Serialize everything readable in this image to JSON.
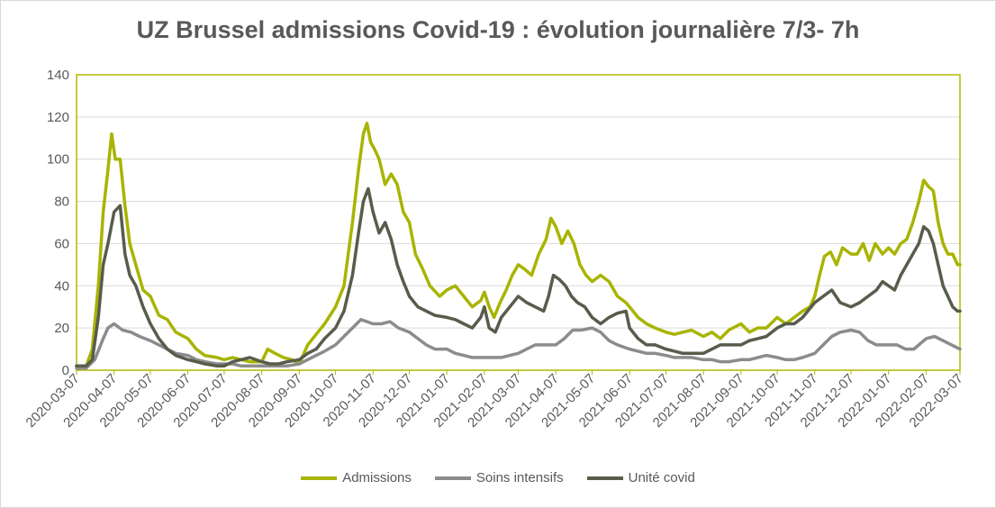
{
  "chart_data": {
    "type": "line",
    "title": "UZ Brussel admissions Covid-19 : évolution journalière 7/3- 7h",
    "xlabel": "",
    "ylabel": "",
    "ylim": [
      0,
      140
    ],
    "yticks": [
      0,
      20,
      40,
      60,
      80,
      100,
      120,
      140
    ],
    "x_tick_labels": [
      "2020-03-07",
      "2020-04-07",
      "2020-05-07",
      "2020-06-07",
      "2020-07-07",
      "2020-08-07",
      "2020-09-07",
      "2020-10-07",
      "2020-11-07",
      "2020-12-07",
      "2021-01-07",
      "2021-02-07",
      "2021-03-07",
      "2021-04-07",
      "2021-05-07",
      "2021-06-07",
      "2021-07-07",
      "2021-08-07",
      "2021-09-07",
      "2021-10-07",
      "2021-11-07",
      "2021-12-07",
      "2022-01-07",
      "2022-02-07",
      "2022-03-07"
    ],
    "grid": true,
    "legend_position": "bottom",
    "series": [
      {
        "name": "Admissions",
        "color": "#a8b400",
        "x": [
          "2020-03-07",
          "2020-03-15",
          "2020-03-20",
          "2020-03-25",
          "2020-03-29",
          "2020-04-02",
          "2020-04-05",
          "2020-04-08",
          "2020-04-12",
          "2020-04-16",
          "2020-04-20",
          "2020-04-25",
          "2020-05-01",
          "2020-05-07",
          "2020-05-14",
          "2020-05-21",
          "2020-05-28",
          "2020-06-07",
          "2020-06-14",
          "2020-06-21",
          "2020-07-01",
          "2020-07-07",
          "2020-07-14",
          "2020-07-21",
          "2020-07-28",
          "2020-08-07",
          "2020-08-12",
          "2020-08-18",
          "2020-08-25",
          "2020-09-01",
          "2020-09-07",
          "2020-09-14",
          "2020-09-21",
          "2020-09-28",
          "2020-10-07",
          "2020-10-14",
          "2020-10-21",
          "2020-10-26",
          "2020-10-30",
          "2020-11-02",
          "2020-11-05",
          "2020-11-08",
          "2020-11-12",
          "2020-11-17",
          "2020-11-22",
          "2020-11-27",
          "2020-12-02",
          "2020-12-07",
          "2020-12-12",
          "2020-12-18",
          "2020-12-24",
          "2021-01-01",
          "2021-01-07",
          "2021-01-14",
          "2021-01-21",
          "2021-01-28",
          "2021-02-04",
          "2021-02-07",
          "2021-02-11",
          "2021-02-15",
          "2021-02-20",
          "2021-02-25",
          "2021-03-02",
          "2021-03-07",
          "2021-03-12",
          "2021-03-18",
          "2021-03-24",
          "2021-03-30",
          "2021-04-03",
          "2021-04-07",
          "2021-04-12",
          "2021-04-17",
          "2021-04-22",
          "2021-04-27",
          "2021-05-02",
          "2021-05-07",
          "2021-05-14",
          "2021-05-21",
          "2021-05-28",
          "2021-06-04",
          "2021-06-07",
          "2021-06-14",
          "2021-06-21",
          "2021-06-28",
          "2021-07-07",
          "2021-07-14",
          "2021-07-21",
          "2021-07-28",
          "2021-08-07",
          "2021-08-14",
          "2021-08-21",
          "2021-08-28",
          "2021-09-07",
          "2021-09-14",
          "2021-09-21",
          "2021-09-28",
          "2021-10-07",
          "2021-10-14",
          "2021-10-21",
          "2021-10-28",
          "2021-11-03",
          "2021-11-07",
          "2021-11-11",
          "2021-11-15",
          "2021-11-20",
          "2021-11-25",
          "2021-11-30",
          "2021-12-07",
          "2021-12-12",
          "2021-12-17",
          "2021-12-22",
          "2021-12-27",
          "2022-01-02",
          "2022-01-07",
          "2022-01-12",
          "2022-01-17",
          "2022-01-22",
          "2022-01-27",
          "2022-02-01",
          "2022-02-05",
          "2022-02-09",
          "2022-02-13",
          "2022-02-17",
          "2022-02-21",
          "2022-02-25",
          "2022-03-01",
          "2022-03-05",
          "2022-03-07"
        ],
        "values": [
          2,
          2,
          10,
          40,
          75,
          95,
          112,
          100,
          100,
          78,
          60,
          50,
          38,
          35,
          26,
          24,
          18,
          15,
          10,
          7,
          6,
          5,
          6,
          5,
          4,
          4,
          10,
          8,
          6,
          5,
          3,
          12,
          17,
          22,
          30,
          40,
          70,
          95,
          112,
          117,
          108,
          105,
          100,
          88,
          93,
          88,
          75,
          70,
          55,
          48,
          40,
          35,
          38,
          40,
          35,
          30,
          33,
          37,
          30,
          25,
          32,
          38,
          45,
          50,
          48,
          45,
          55,
          62,
          72,
          68,
          60,
          66,
          60,
          50,
          45,
          42,
          45,
          42,
          35,
          32,
          30,
          25,
          22,
          20,
          18,
          17,
          18,
          19,
          16,
          18,
          15,
          19,
          22,
          18,
          20,
          20,
          25,
          22,
          25,
          28,
          30,
          35,
          45,
          54,
          56,
          50,
          58,
          55,
          55,
          60,
          52,
          60,
          55,
          58,
          55,
          60,
          62,
          70,
          80,
          90,
          87,
          85,
          70,
          60,
          55,
          55,
          50,
          50
        ]
      },
      {
        "name": "Soins intensifs",
        "color": "#8c8c8c",
        "x": [
          "2020-03-07",
          "2020-03-15",
          "2020-03-22",
          "2020-03-29",
          "2020-04-02",
          "2020-04-07",
          "2020-04-14",
          "2020-04-21",
          "2020-04-28",
          "2020-05-07",
          "2020-05-14",
          "2020-05-21",
          "2020-05-28",
          "2020-06-07",
          "2020-06-14",
          "2020-06-21",
          "2020-07-01",
          "2020-07-07",
          "2020-07-14",
          "2020-07-21",
          "2020-07-28",
          "2020-08-07",
          "2020-08-14",
          "2020-08-21",
          "2020-08-28",
          "2020-09-07",
          "2020-09-14",
          "2020-09-21",
          "2020-09-28",
          "2020-10-07",
          "2020-10-14",
          "2020-10-21",
          "2020-10-28",
          "2020-11-02",
          "2020-11-07",
          "2020-11-14",
          "2020-11-21",
          "2020-11-28",
          "2020-12-07",
          "2020-12-14",
          "2020-12-21",
          "2020-12-28",
          "2021-01-07",
          "2021-01-14",
          "2021-01-21",
          "2021-01-28",
          "2021-02-07",
          "2021-02-14",
          "2021-02-21",
          "2021-02-28",
          "2021-03-07",
          "2021-03-14",
          "2021-03-21",
          "2021-03-28",
          "2021-04-07",
          "2021-04-14",
          "2021-04-21",
          "2021-04-28",
          "2021-05-07",
          "2021-05-14",
          "2021-05-21",
          "2021-05-28",
          "2021-06-07",
          "2021-06-14",
          "2021-06-21",
          "2021-06-28",
          "2021-07-07",
          "2021-07-14",
          "2021-07-21",
          "2021-07-28",
          "2021-08-07",
          "2021-08-14",
          "2021-08-21",
          "2021-08-28",
          "2021-09-07",
          "2021-09-14",
          "2021-09-21",
          "2021-09-28",
          "2021-10-07",
          "2021-10-14",
          "2021-10-21",
          "2021-10-28",
          "2021-11-07",
          "2021-11-14",
          "2021-11-21",
          "2021-11-28",
          "2021-12-07",
          "2021-12-14",
          "2021-12-21",
          "2021-12-28",
          "2022-01-07",
          "2022-01-14",
          "2022-01-21",
          "2022-01-28",
          "2022-02-07",
          "2022-02-14",
          "2022-02-21",
          "2022-02-28",
          "2022-03-07"
        ],
        "values": [
          1,
          1,
          5,
          15,
          20,
          22,
          19,
          18,
          16,
          14,
          12,
          10,
          8,
          7,
          5,
          4,
          3,
          3,
          3,
          2,
          2,
          2,
          2,
          2,
          2,
          3,
          5,
          7,
          9,
          12,
          16,
          20,
          24,
          23,
          22,
          22,
          23,
          20,
          18,
          15,
          12,
          10,
          10,
          8,
          7,
          6,
          6,
          6,
          6,
          7,
          8,
          10,
          12,
          12,
          12,
          15,
          19,
          19,
          20,
          18,
          14,
          12,
          10,
          9,
          8,
          8,
          7,
          6,
          6,
          6,
          5,
          5,
          4,
          4,
          5,
          5,
          6,
          7,
          6,
          5,
          5,
          6,
          8,
          12,
          16,
          18,
          19,
          18,
          14,
          12,
          12,
          12,
          10,
          10,
          15,
          16,
          14,
          12,
          10
        ]
      },
      {
        "name": "Unité covid",
        "color": "#585c4c",
        "x": [
          "2020-03-07",
          "2020-03-15",
          "2020-03-20",
          "2020-03-25",
          "2020-03-29",
          "2020-04-02",
          "2020-04-07",
          "2020-04-12",
          "2020-04-16",
          "2020-04-20",
          "2020-04-25",
          "2020-05-01",
          "2020-05-07",
          "2020-05-14",
          "2020-05-21",
          "2020-05-28",
          "2020-06-07",
          "2020-06-14",
          "2020-06-21",
          "2020-07-01",
          "2020-07-07",
          "2020-07-14",
          "2020-07-21",
          "2020-07-28",
          "2020-08-07",
          "2020-08-14",
          "2020-08-21",
          "2020-08-28",
          "2020-09-07",
          "2020-09-14",
          "2020-09-21",
          "2020-09-28",
          "2020-10-07",
          "2020-10-14",
          "2020-10-21",
          "2020-10-26",
          "2020-10-30",
          "2020-11-03",
          "2020-11-07",
          "2020-11-12",
          "2020-11-17",
          "2020-11-22",
          "2020-11-27",
          "2020-12-02",
          "2020-12-07",
          "2020-12-14",
          "2020-12-21",
          "2020-12-28",
          "2021-01-07",
          "2021-01-14",
          "2021-01-21",
          "2021-01-28",
          "2021-02-04",
          "2021-02-07",
          "2021-02-11",
          "2021-02-16",
          "2021-02-21",
          "2021-02-28",
          "2021-03-07",
          "2021-03-14",
          "2021-03-21",
          "2021-03-28",
          "2021-04-01",
          "2021-04-05",
          "2021-04-10",
          "2021-04-15",
          "2021-04-20",
          "2021-04-25",
          "2021-05-01",
          "2021-05-07",
          "2021-05-14",
          "2021-05-21",
          "2021-05-28",
          "2021-06-04",
          "2021-06-07",
          "2021-06-14",
          "2021-06-21",
          "2021-06-28",
          "2021-07-07",
          "2021-07-14",
          "2021-07-21",
          "2021-07-28",
          "2021-08-07",
          "2021-08-14",
          "2021-08-21",
          "2021-08-28",
          "2021-09-07",
          "2021-09-14",
          "2021-09-21",
          "2021-09-28",
          "2021-10-07",
          "2021-10-14",
          "2021-10-21",
          "2021-10-28",
          "2021-11-07",
          "2021-11-14",
          "2021-11-21",
          "2021-11-28",
          "2021-12-07",
          "2021-12-14",
          "2021-12-21",
          "2021-12-28",
          "2022-01-02",
          "2022-01-07",
          "2022-01-12",
          "2022-01-17",
          "2022-01-22",
          "2022-01-27",
          "2022-02-01",
          "2022-02-05",
          "2022-02-09",
          "2022-02-13",
          "2022-02-17",
          "2022-02-21",
          "2022-02-25",
          "2022-03-01",
          "2022-03-05",
          "2022-03-07"
        ],
        "values": [
          2,
          2,
          5,
          25,
          50,
          60,
          75,
          78,
          55,
          45,
          40,
          30,
          22,
          15,
          10,
          7,
          5,
          4,
          3,
          2,
          2,
          4,
          5,
          6,
          4,
          3,
          3,
          4,
          5,
          8,
          10,
          15,
          20,
          28,
          45,
          65,
          80,
          86,
          75,
          65,
          70,
          62,
          50,
          42,
          35,
          30,
          28,
          26,
          25,
          24,
          22,
          20,
          25,
          30,
          20,
          18,
          25,
          30,
          35,
          32,
          30,
          28,
          35,
          45,
          43,
          40,
          35,
          32,
          30,
          25,
          22,
          25,
          27,
          28,
          20,
          15,
          12,
          12,
          10,
          9,
          8,
          8,
          8,
          10,
          12,
          12,
          12,
          14,
          15,
          16,
          20,
          22,
          22,
          25,
          32,
          35,
          38,
          32,
          30,
          32,
          35,
          38,
          42,
          40,
          38,
          45,
          50,
          55,
          60,
          68,
          66,
          60,
          50,
          40,
          35,
          30,
          28,
          28
        ]
      }
    ]
  }
}
